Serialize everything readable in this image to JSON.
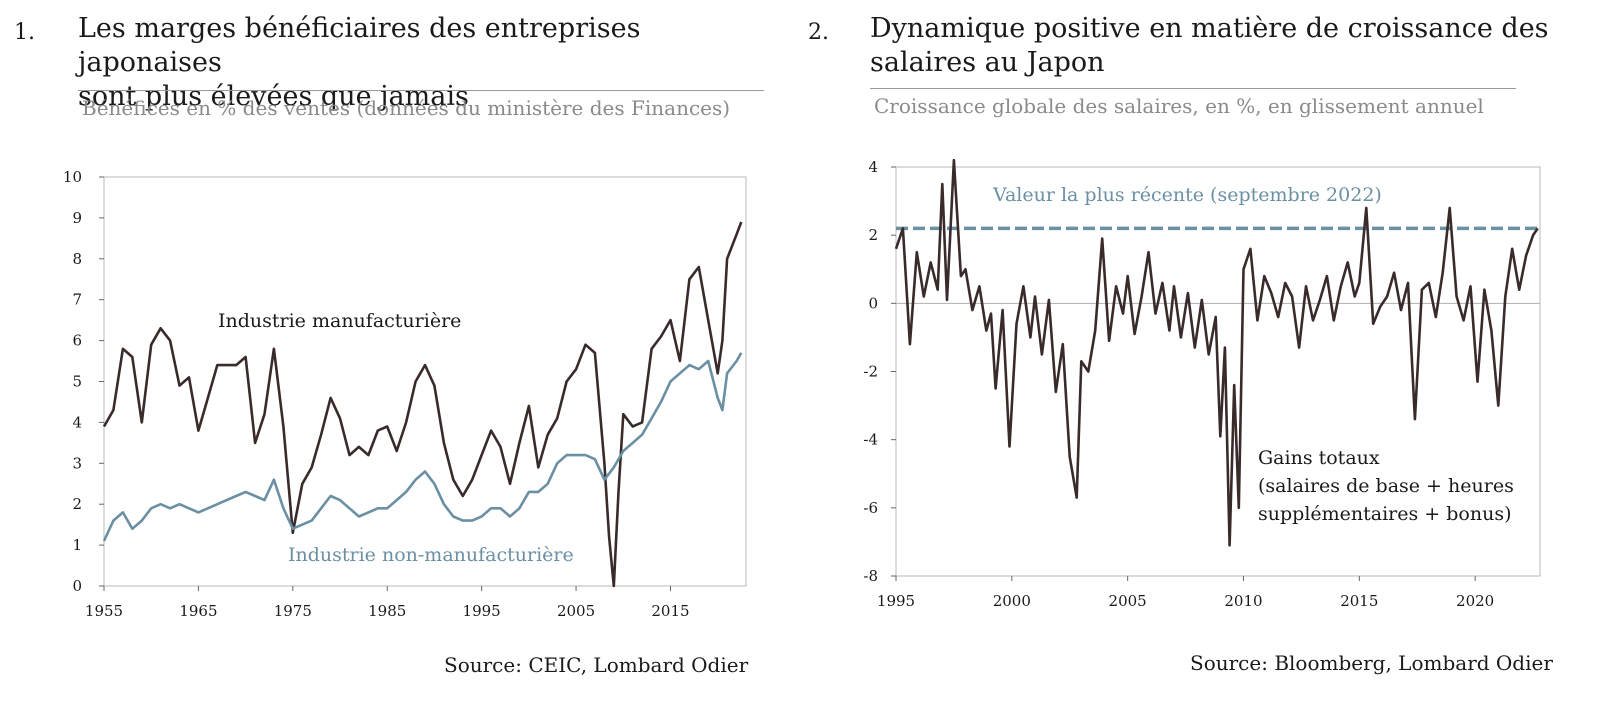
{
  "panel1": {
    "number": "1.",
    "title_line1": "Les marges bénéficiaires des entreprises japonaises",
    "title_line2": "sont plus élevées que jamais",
    "subtitle": "Bénéfices en % des ventes (données du ministère des Finances)",
    "source": "Source: CEIC, Lombard Odier"
  },
  "panel2": {
    "number": "2.",
    "title_line1": "Dynamique positive en matière de croissance des",
    "title_line2": "salaires au Japon",
    "subtitle": "Croissance globale des salaires, en %, en glissement annuel",
    "source": "Source: Bloomberg, Lombard Odier"
  },
  "chart_data": [
    {
      "type": "line",
      "xlim": [
        1955,
        2023
      ],
      "ylim": [
        0,
        10
      ],
      "x_ticks": [
        1955,
        1965,
        1975,
        1985,
        1995,
        2005,
        2015
      ],
      "y_ticks": [
        0,
        1,
        2,
        3,
        4,
        5,
        6,
        7,
        8,
        9,
        10
      ],
      "grid": false,
      "series": [
        {
          "name": "Industrie manufacturière",
          "color": "#3a2b2b",
          "x": [
            1955,
            1956,
            1957,
            1958,
            1959,
            1960,
            1961,
            1962,
            1963,
            1964,
            1965,
            1966,
            1967,
            1968,
            1969,
            1970,
            1971,
            1972,
            1973,
            1974,
            1975,
            1976,
            1977,
            1978,
            1979,
            1980,
            1981,
            1982,
            1983,
            1984,
            1985,
            1986,
            1987,
            1988,
            1989,
            1990,
            1991,
            1992,
            1993,
            1994,
            1995,
            1996,
            1997,
            1998,
            1999,
            2000,
            2001,
            2002,
            2003,
            2004,
            2005,
            2006,
            2007,
            2008,
            2008.5,
            2009,
            2009.5,
            2010,
            2011,
            2012,
            2013,
            2014,
            2015,
            2016,
            2017,
            2018,
            2019,
            2020,
            2020.5,
            2021,
            2022,
            2022.5
          ],
          "values": [
            3.9,
            4.3,
            5.8,
            5.6,
            4.0,
            5.9,
            6.3,
            6.0,
            4.9,
            5.1,
            3.8,
            4.6,
            5.4,
            5.4,
            5.4,
            5.6,
            3.5,
            4.2,
            5.8,
            3.9,
            1.3,
            2.5,
            2.9,
            3.7,
            4.6,
            4.1,
            3.2,
            3.4,
            3.2,
            3.8,
            3.9,
            3.3,
            4.0,
            5.0,
            5.4,
            4.9,
            3.5,
            2.6,
            2.2,
            2.6,
            3.2,
            3.8,
            3.4,
            2.5,
            3.5,
            4.4,
            2.9,
            3.7,
            4.1,
            5.0,
            5.3,
            5.9,
            5.7,
            3.0,
            1.2,
            0.0,
            2.3,
            4.2,
            3.9,
            4.0,
            5.8,
            6.1,
            6.5,
            5.5,
            7.5,
            7.8,
            6.5,
            5.2,
            6.0,
            8.0,
            8.6,
            8.9
          ]
        },
        {
          "name": "Industrie non-manufacturière",
          "color": "#6b8fa3",
          "x": [
            1955,
            1956,
            1957,
            1958,
            1959,
            1960,
            1961,
            1962,
            1963,
            1964,
            1965,
            1966,
            1967,
            1968,
            1969,
            1970,
            1971,
            1972,
            1973,
            1974,
            1975,
            1976,
            1977,
            1978,
            1979,
            1980,
            1981,
            1982,
            1983,
            1984,
            1985,
            1986,
            1987,
            1988,
            1989,
            1990,
            1991,
            1992,
            1993,
            1994,
            1995,
            1996,
            1997,
            1998,
            1999,
            2000,
            2001,
            2002,
            2003,
            2004,
            2005,
            2006,
            2007,
            2008,
            2009,
            2010,
            2011,
            2012,
            2013,
            2014,
            2015,
            2016,
            2017,
            2018,
            2019,
            2020,
            2020.5,
            2021,
            2022,
            2022.5
          ],
          "values": [
            1.1,
            1.6,
            1.8,
            1.4,
            1.6,
            1.9,
            2.0,
            1.9,
            2.0,
            1.9,
            1.8,
            1.9,
            2.0,
            2.1,
            2.2,
            2.3,
            2.2,
            2.1,
            2.6,
            1.9,
            1.4,
            1.5,
            1.6,
            1.9,
            2.2,
            2.1,
            1.9,
            1.7,
            1.8,
            1.9,
            1.9,
            2.1,
            2.3,
            2.6,
            2.8,
            2.5,
            2.0,
            1.7,
            1.6,
            1.6,
            1.7,
            1.9,
            1.9,
            1.7,
            1.9,
            2.3,
            2.3,
            2.5,
            3.0,
            3.2,
            3.2,
            3.2,
            3.1,
            2.6,
            2.9,
            3.3,
            3.5,
            3.7,
            4.1,
            4.5,
            5.0,
            5.2,
            5.4,
            5.3,
            5.5,
            4.6,
            4.3,
            5.2,
            5.5,
            5.7
          ]
        }
      ],
      "annotations": [
        "Industrie manufacturière",
        "Industrie non-manufacturière"
      ]
    },
    {
      "type": "line",
      "xlim": [
        1995,
        2022.8
      ],
      "ylim": [
        -8,
        4
      ],
      "x_ticks": [
        1995,
        2000,
        2005,
        2010,
        2015,
        2020
      ],
      "y_ticks": [
        -8,
        -6,
        -4,
        -2,
        0,
        2,
        4
      ],
      "zero_line": true,
      "series": [
        {
          "name": "Gains totaux",
          "color": "#3a2b2b",
          "x": [
            1995,
            1995.3,
            1995.6,
            1995.9,
            1996.2,
            1996.5,
            1996.8,
            1997.0,
            1997.2,
            1997.5,
            1997.8,
            1998.0,
            1998.3,
            1998.6,
            1998.9,
            1999.1,
            1999.3,
            1999.6,
            1999.9,
            2000.2,
            2000.5,
            2000.8,
            2001.0,
            2001.3,
            2001.6,
            2001.9,
            2002.2,
            2002.5,
            2002.8,
            2003.0,
            2003.3,
            2003.6,
            2003.9,
            2004.2,
            2004.5,
            2004.8,
            2005.0,
            2005.3,
            2005.6,
            2005.9,
            2006.2,
            2006.5,
            2006.8,
            2007.0,
            2007.3,
            2007.6,
            2007.9,
            2008.2,
            2008.5,
            2008.8,
            2009.0,
            2009.2,
            2009.4,
            2009.6,
            2009.8,
            2010.0,
            2010.3,
            2010.6,
            2010.9,
            2011.2,
            2011.5,
            2011.8,
            2012.1,
            2012.4,
            2012.7,
            2013.0,
            2013.3,
            2013.6,
            2013.9,
            2014.2,
            2014.5,
            2014.8,
            2015.0,
            2015.3,
            2015.6,
            2015.9,
            2016.2,
            2016.5,
            2016.8,
            2017.1,
            2017.4,
            2017.7,
            2018.0,
            2018.3,
            2018.6,
            2018.9,
            2019.2,
            2019.5,
            2019.8,
            2020.1,
            2020.4,
            2020.7,
            2021.0,
            2021.3,
            2021.6,
            2021.9,
            2022.2,
            2022.5,
            2022.7
          ],
          "values": [
            1.6,
            2.2,
            -1.2,
            1.5,
            0.2,
            1.2,
            0.4,
            3.5,
            0.1,
            4.2,
            0.8,
            1.0,
            -0.2,
            0.5,
            -0.8,
            -0.3,
            -2.5,
            -0.2,
            -4.2,
            -0.6,
            0.5,
            -1.0,
            0.2,
            -1.5,
            0.1,
            -2.6,
            -1.2,
            -4.5,
            -5.7,
            -1.7,
            -2.0,
            -0.8,
            1.9,
            -1.1,
            0.5,
            -0.3,
            0.8,
            -0.9,
            0.2,
            1.5,
            -0.3,
            0.6,
            -0.8,
            0.5,
            -1.0,
            0.3,
            -1.3,
            0.1,
            -1.5,
            -0.4,
            -3.9,
            -1.3,
            -7.1,
            -2.4,
            -6.0,
            1.0,
            1.6,
            -0.5,
            0.8,
            0.3,
            -0.4,
            0.6,
            0.2,
            -1.3,
            0.5,
            -0.5,
            0.1,
            0.8,
            -0.5,
            0.5,
            1.2,
            0.2,
            0.6,
            2.8,
            -0.6,
            -0.1,
            0.2,
            0.9,
            -0.2,
            0.6,
            -3.4,
            0.4,
            0.6,
            -0.4,
            0.9,
            2.8,
            0.2,
            -0.5,
            0.5,
            -2.3,
            0.4,
            -0.8,
            -3.0,
            0.2,
            1.6,
            0.4,
            1.4,
            2.0,
            2.2
          ],
          "reference": {
            "name": "Valeur la plus récente (septembre 2022)",
            "value": 2.2,
            "color": "#6b8fa3"
          }
        }
      ],
      "annotations": [
        "Valeur la plus récente (septembre 2022)",
        "Gains totaux",
        "(salaires de base + heures",
        "supplémentaires + bonus)"
      ]
    }
  ]
}
